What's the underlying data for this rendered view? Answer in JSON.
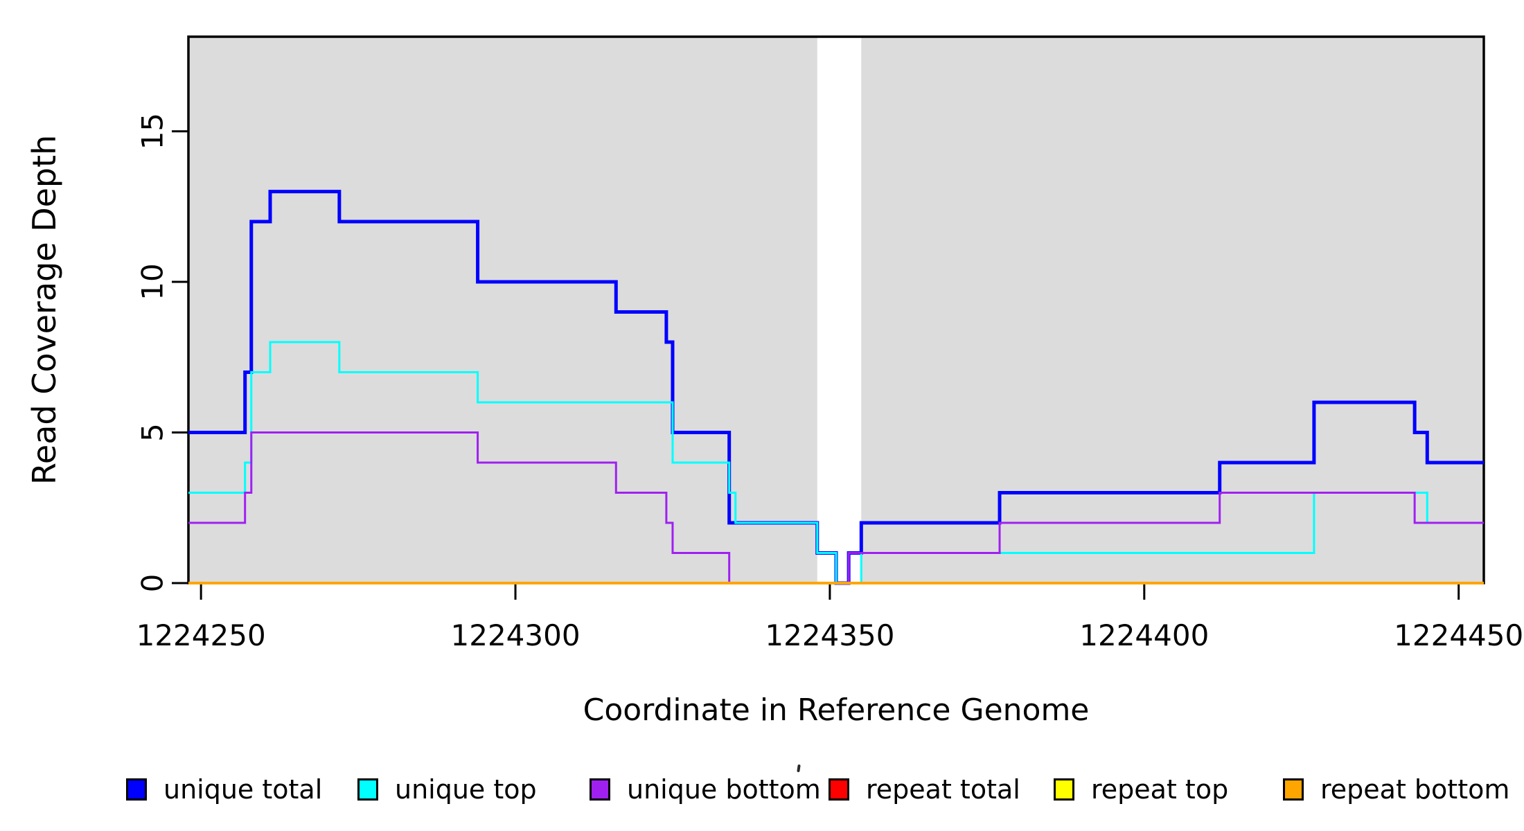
{
  "chart_data": {
    "type": "line",
    "subtype": "step",
    "title": "",
    "xlabel": "Coordinate in Reference Genome",
    "ylabel": "Read Coverage Depth",
    "xlim": [
      1224248,
      1224454
    ],
    "ylim": [
      0,
      18.14
    ],
    "grid": false,
    "legend_position": "bottom",
    "x_ticks": [
      {
        "value": 1224250,
        "label": "1224250"
      },
      {
        "value": 1224300,
        "label": "1224300"
      },
      {
        "value": 1224350,
        "label": "1224350"
      },
      {
        "value": 1224400,
        "label": "1224400"
      },
      {
        "value": 1224450,
        "label": "1224450"
      }
    ],
    "y_ticks": [
      {
        "value": 0,
        "label": "0"
      },
      {
        "value": 5,
        "label": "5"
      },
      {
        "value": 10,
        "label": "10"
      },
      {
        "value": 15,
        "label": "15"
      }
    ],
    "background_regions": [
      {
        "name": "unique-region-left",
        "x0": 1224248,
        "x1": 1224348,
        "color": "#DCDCDC"
      },
      {
        "name": "unique-region-right",
        "x0": 1224355,
        "x1": 1224454,
        "color": "#DCDCDC"
      }
    ],
    "gap_region": {
      "x0": 1224348,
      "x1": 1224355,
      "color": "#FFFFFF"
    },
    "series": [
      {
        "name": "unique total",
        "color": "#0000FF",
        "line_width": 5,
        "steps": [
          [
            1224248,
            5
          ],
          [
            1224257,
            7
          ],
          [
            1224258,
            12
          ],
          [
            1224261,
            13
          ],
          [
            1224272,
            12
          ],
          [
            1224294,
            10
          ],
          [
            1224316,
            9
          ],
          [
            1224324,
            8
          ],
          [
            1224325,
            5
          ],
          [
            1224334,
            2
          ],
          [
            1224348,
            1
          ],
          [
            1224351,
            0
          ],
          [
            1224353,
            1
          ],
          [
            1224355,
            2
          ],
          [
            1224377,
            3
          ],
          [
            1224412,
            4
          ],
          [
            1224427,
            6
          ],
          [
            1224443,
            5
          ],
          [
            1224445,
            4
          ]
        ]
      },
      {
        "name": "unique top",
        "color": "#00FFFF",
        "line_width": 3,
        "steps": [
          [
            1224248,
            3
          ],
          [
            1224257,
            4
          ],
          [
            1224258,
            7
          ],
          [
            1224261,
            8
          ],
          [
            1224272,
            7
          ],
          [
            1224294,
            6
          ],
          [
            1224325,
            4
          ],
          [
            1224334,
            3
          ],
          [
            1224335,
            2
          ],
          [
            1224348,
            1
          ],
          [
            1224351,
            0
          ],
          [
            1224355,
            1
          ],
          [
            1224427,
            3
          ],
          [
            1224445,
            2
          ]
        ]
      },
      {
        "name": "unique bottom",
        "color": "#A020F0",
        "line_width": 3,
        "steps": [
          [
            1224248,
            2
          ],
          [
            1224257,
            3
          ],
          [
            1224258,
            5
          ],
          [
            1224294,
            4
          ],
          [
            1224316,
            3
          ],
          [
            1224324,
            2
          ],
          [
            1224325,
            1
          ],
          [
            1224334,
            0
          ],
          [
            1224353,
            1
          ],
          [
            1224377,
            2
          ],
          [
            1224412,
            3
          ],
          [
            1224443,
            2
          ]
        ]
      },
      {
        "name": "repeat total",
        "color": "#FF0000",
        "line_width": 3,
        "steps": [
          [
            1224248,
            0
          ]
        ]
      },
      {
        "name": "repeat top",
        "color": "#FFFF00",
        "line_width": 3,
        "steps": [
          [
            1224248,
            0
          ]
        ]
      },
      {
        "name": "repeat bottom",
        "color": "#FFA500",
        "line_width": 4,
        "steps": [
          [
            1224248,
            0
          ]
        ]
      }
    ],
    "legend": [
      {
        "label": "unique total",
        "color": "#0000FF"
      },
      {
        "label": "unique top",
        "color": "#00FFFF"
      },
      {
        "label": "unique bottom",
        "color": "#A020F0"
      },
      {
        "label": "repeat total",
        "color": "#FF0000"
      },
      {
        "label": "repeat top",
        "color": "#FFFF00"
      },
      {
        "label": "repeat bottom",
        "color": "#FFA500"
      }
    ],
    "axis_color": "#000000"
  }
}
